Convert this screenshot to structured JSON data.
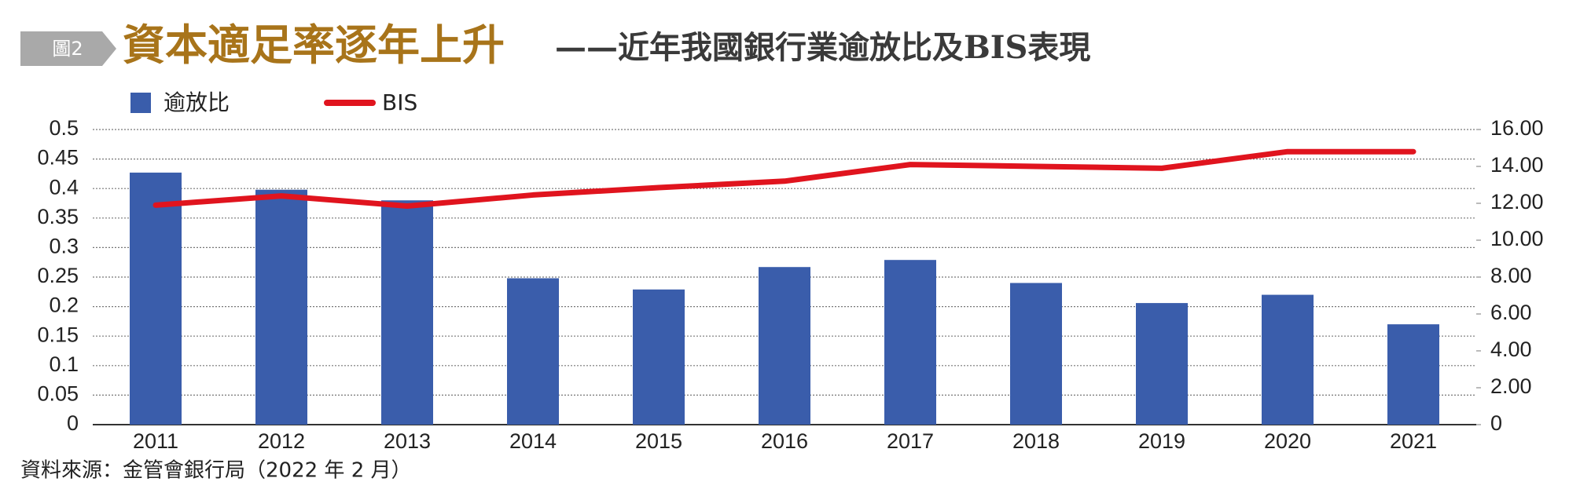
{
  "chart_data": {
    "type": "bar-line",
    "badge": "圖2",
    "title": "資本適足率逐年上升",
    "subtitle": "——近年我國銀行業逾放比及BIS表現",
    "source": "資料來源：金管會銀行局（2022 年 2 月）",
    "categories": [
      "2011",
      "2012",
      "2013",
      "2014",
      "2015",
      "2016",
      "2017",
      "2018",
      "2019",
      "2020",
      "2021"
    ],
    "series": [
      {
        "name": "逾放比",
        "type": "bar",
        "color": "#3a5dab",
        "values": [
          0.427,
          0.398,
          0.38,
          0.248,
          0.229,
          0.267,
          0.279,
          0.24,
          0.206,
          0.22,
          0.17
        ]
      },
      {
        "name": "BIS",
        "type": "line",
        "axis": "y2",
        "color": "#e0141e",
        "values": [
          11.9,
          12.4,
          11.85,
          12.45,
          12.85,
          13.2,
          14.1,
          14.0,
          13.9,
          14.8,
          14.8
        ]
      }
    ],
    "ylim": [
      0,
      0.5
    ],
    "yticks": [
      0,
      0.05,
      0.1,
      0.15,
      0.2,
      0.25,
      0.3,
      0.35,
      0.4,
      0.45,
      0.5
    ],
    "y2lim": [
      0,
      16
    ],
    "y2ticks": [
      0,
      {
        "value": 2,
        "label": "2.00"
      },
      {
        "value": 4,
        "label": "4.00"
      },
      {
        "value": 6,
        "label": "6.00"
      },
      {
        "value": 8,
        "label": "8.00"
      },
      {
        "value": 10,
        "label": "10.00"
      },
      {
        "value": 12,
        "label": "12.00"
      },
      {
        "value": 14,
        "label": "14.00"
      },
      {
        "value": 16,
        "label": "16.00"
      }
    ],
    "grid": true,
    "legend": "top-left"
  }
}
